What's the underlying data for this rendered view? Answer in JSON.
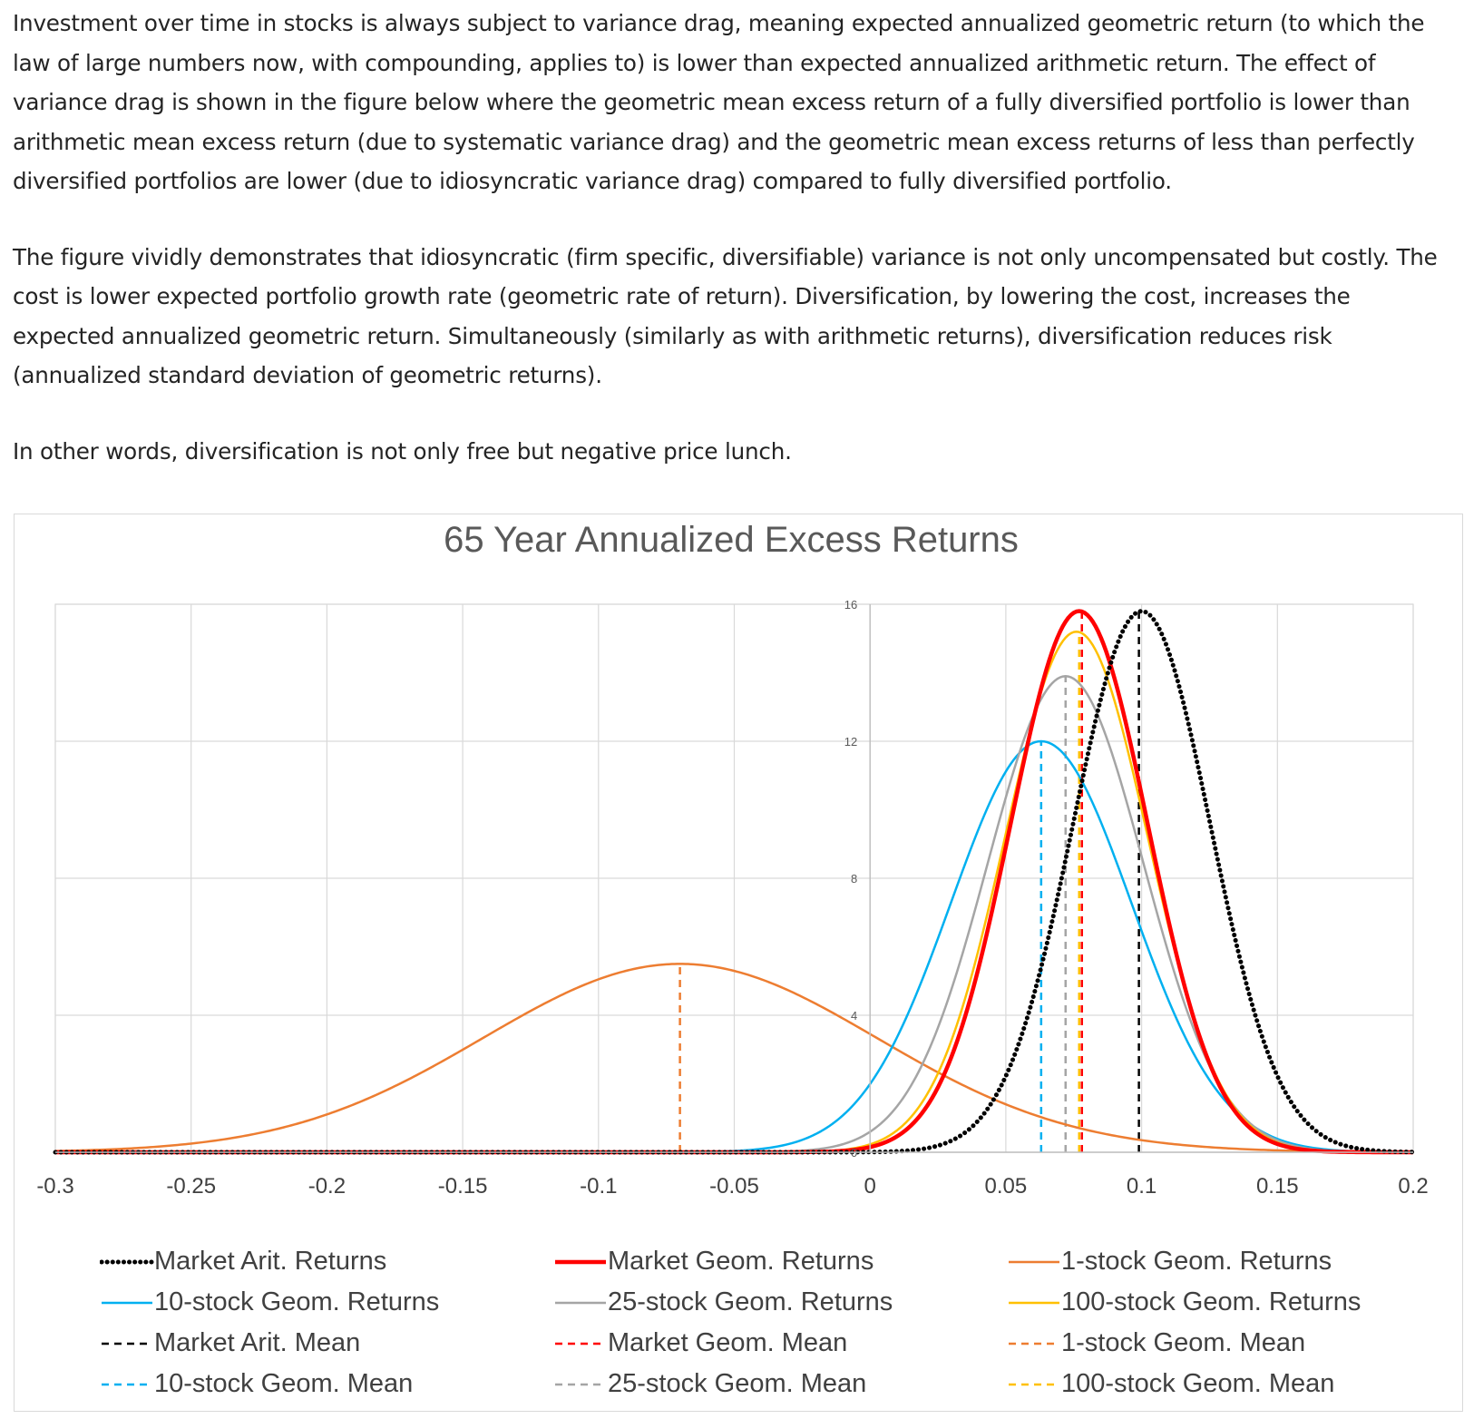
{
  "article": {
    "paragraphs": [
      "Investment over time in stocks is always subject to variance drag, meaning expected annualized geometric return (to which the law of large numbers now, with compounding, applies to) is lower than expected annualized arithmetic return. The effect of variance drag is shown in the figure below where the geometric mean excess return of a fully diversified portfolio is lower than arithmetic mean excess return (due to systematic variance drag) and the geometric mean excess returns of less than perfectly diversified portfolios are lower (due to idiosyncratic variance drag) compared to fully diversified portfolio.",
      "The figure vividly demonstrates that idiosyncratic (firm specific, diversifiable) variance is not only uncompensated but costly. The cost is lower expected portfolio growth rate (geometric rate of return). Diversification, by lowering the cost, increases the expected annualized geometric return. Simultaneously (similarly as with arithmetic returns), diversification reduces risk (annualized standard deviation of geometric returns).",
      "In other words, diversification is not only free but negative price lunch."
    ]
  },
  "chart_data": {
    "type": "line",
    "title": "65 Year Annualized Excess Returns",
    "xlabel": "",
    "ylabel": "",
    "xlim": [
      -0.3,
      0.2
    ],
    "ylim": [
      0,
      16
    ],
    "xticks": [
      "-0.3",
      "-0.25",
      "-0.2",
      "-0.15",
      "-0.1",
      "-0.05",
      "0",
      "0.05",
      "0.1",
      "0.15",
      "0.2"
    ],
    "yticks": [
      "0",
      "4",
      "8",
      "12",
      "16"
    ],
    "grid": true,
    "legend_position": "bottom",
    "series": [
      {
        "name": "Market Arit. Returns",
        "kind": "curve",
        "mean": 0.1,
        "peak": 15.8,
        "color": "#000000",
        "style": "dotted"
      },
      {
        "name": "Market Geom. Returns",
        "kind": "curve",
        "mean": 0.077,
        "peak": 15.8,
        "color": "#ff0000",
        "style": "solid-thick"
      },
      {
        "name": "1-stock Geom. Returns",
        "kind": "curve",
        "mean": -0.07,
        "peak": 5.5,
        "color": "#ed7d31",
        "style": "solid"
      },
      {
        "name": "10-stock Geom. Returns",
        "kind": "curve",
        "mean": 0.063,
        "peak": 12.0,
        "color": "#00b0f0",
        "style": "solid"
      },
      {
        "name": "25-stock Geom. Returns",
        "kind": "curve",
        "mean": 0.072,
        "peak": 13.9,
        "color": "#a5a5a5",
        "style": "solid"
      },
      {
        "name": "100-stock Geom. Returns",
        "kind": "curve",
        "mean": 0.076,
        "peak": 15.2,
        "color": "#ffc000",
        "style": "solid"
      },
      {
        "name": "Market Arit. Mean",
        "kind": "vline",
        "x": 0.099,
        "top": 15.8,
        "color": "#000000",
        "style": "dashed"
      },
      {
        "name": "Market Geom. Mean",
        "kind": "vline",
        "x": 0.078,
        "top": 15.8,
        "color": "#ff0000",
        "style": "dashed"
      },
      {
        "name": "1-stock Geom. Mean",
        "kind": "vline",
        "x": -0.07,
        "top": 5.5,
        "color": "#ed7d31",
        "style": "dashed"
      },
      {
        "name": "10-stock Geom. Mean",
        "kind": "vline",
        "x": 0.063,
        "top": 12.0,
        "color": "#00b0f0",
        "style": "dashed"
      },
      {
        "name": "25-stock Geom. Mean",
        "kind": "vline",
        "x": 0.072,
        "top": 13.9,
        "color": "#a5a5a5",
        "style": "dashed"
      },
      {
        "name": "100-stock Geom. Mean",
        "kind": "vline",
        "x": 0.077,
        "top": 15.2,
        "color": "#ffc000",
        "style": "dashed"
      }
    ]
  }
}
